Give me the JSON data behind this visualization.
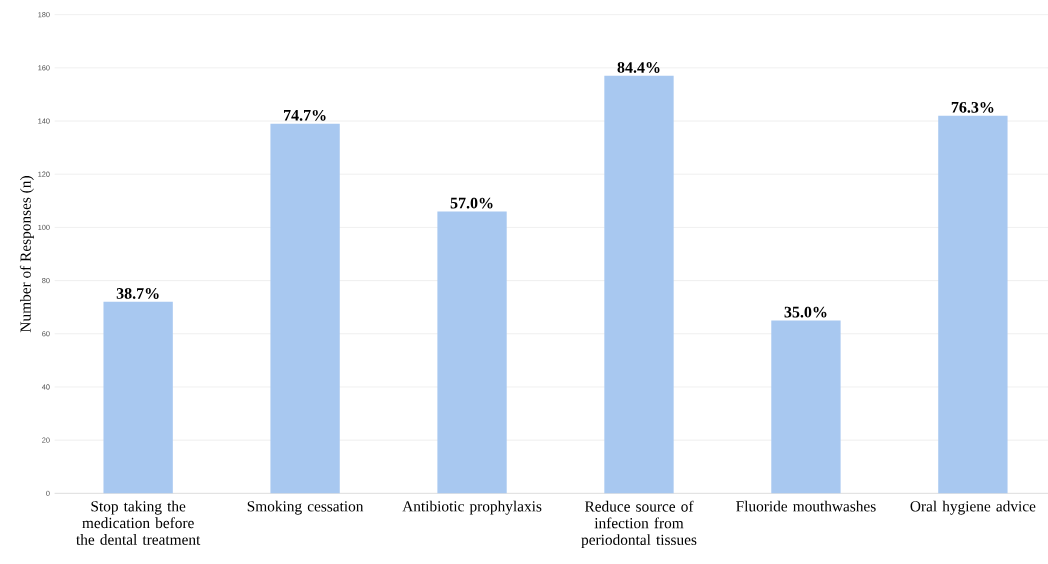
{
  "chart_data": {
    "type": "bar",
    "ylabel": "Number of Responses (n)",
    "categories": [
      "Stop taking the medication before the dental treatment",
      "Smoking cessation",
      "Antibiotic prophylaxis",
      "Reduce source of infection from periodontal tissues",
      "Fluoride mouthwashes",
      "Oral hygiene advice"
    ],
    "values": [
      72,
      139,
      106,
      157,
      65,
      142
    ],
    "annotations": [
      {
        "text": "38.7%",
        "x": "Stop taking the medication before the dental treatment",
        "y": 72
      },
      {
        "text": "74.7%",
        "x": "Smoking cessation",
        "y": 139
      },
      {
        "text": "57.0%",
        "x": "Antibiotic prophylaxis",
        "y": 106
      },
      {
        "text": "84.4%",
        "x": "Reduce source of infection from periodontal tissues",
        "y": 157
      },
      {
        "text": "35.0%",
        "x": "Fluoride mouthwashes",
        "y": 65
      },
      {
        "text": "76.3%",
        "x": "Oral hygiene advice",
        "y": 142
      }
    ],
    "color": "#a8c8f0",
    "ylim": [
      0,
      180
    ],
    "yticks": [
      0,
      20,
      40,
      60,
      80,
      100,
      120,
      140,
      160,
      180
    ],
    "grid": "y"
  }
}
